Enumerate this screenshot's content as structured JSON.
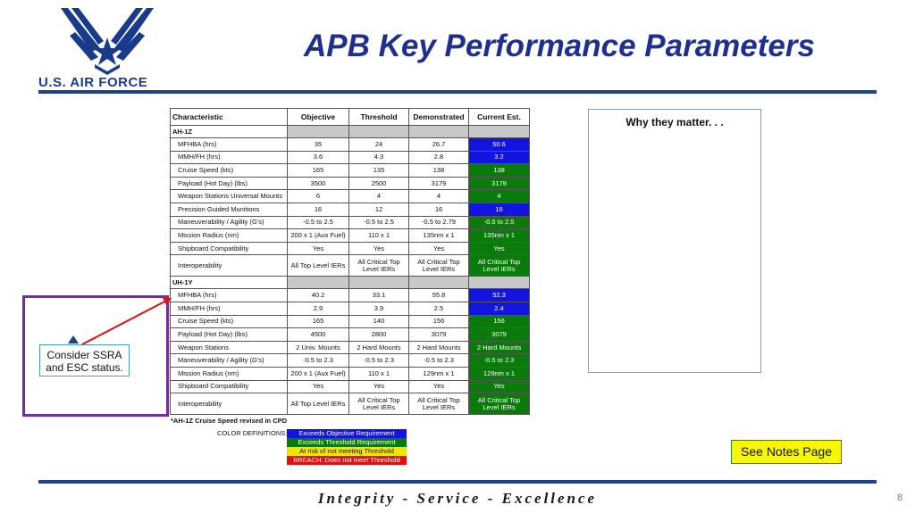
{
  "logo": {
    "text": "U.S. AIR FORCE",
    "icon": "air-force-wings-icon"
  },
  "title": "APB Key Performance Parameters",
  "table": {
    "headers": [
      "Characteristic",
      "Objective",
      "Threshold",
      "Demonstrated",
      "Current Est."
    ],
    "sections": [
      {
        "name": "AH-1Z",
        "rows": [
          [
            "MFHBA (hrs)",
            "35",
            "24",
            "26.7",
            "50.6"
          ],
          [
            "MMH/FH (hrs)",
            "3.6",
            "4.3",
            "2.8",
            "3.2"
          ],
          [
            "Cruise Speed (kts)",
            "165",
            "135",
            "138",
            "138"
          ],
          [
            "Payload (Hot Day) (lbs)",
            "3500",
            "2500",
            "3179",
            "3179"
          ],
          [
            "Weapon Stations Universal Mounts",
            "6",
            "4",
            "4",
            "4"
          ],
          [
            "Precision Guided Munitions",
            "16",
            "12",
            "16",
            "16"
          ],
          [
            "Maneuverability / Agility (G's)",
            "-0.5 to 2.5",
            "-0.5 to 2.5",
            "-0.5 to 2.79",
            "-0.5 to 2.5"
          ],
          [
            "Mission Radius (nm)",
            "200 x 1 (Aux Fuel)",
            "110 x 1",
            "135nm x 1",
            "135nm x 1"
          ],
          [
            "Shipboard Compatibility",
            "Yes",
            "Yes",
            "Yes",
            "Yes"
          ],
          [
            "Interoperability",
            "All Top Level IERs",
            "All Critical Top Level IERs",
            "All Critical Top Level IERs",
            "All Critical Top Level IERs"
          ]
        ],
        "current_status": [
          "blue",
          "blue",
          "green",
          "green",
          "green",
          "blue",
          "green",
          "green",
          "green",
          "green"
        ]
      },
      {
        "name": "UH-1Y",
        "rows": [
          [
            "MFHBA (hrs)",
            "40.2",
            "33.1",
            "55.8",
            "52.3"
          ],
          [
            "MMH/FH (hrs)",
            "2.9",
            "3.9",
            "2.5",
            "2.4"
          ],
          [
            "Cruise Speed (kts)",
            "165",
            "140",
            "156",
            "156"
          ],
          [
            "Payload (Hot Day) (lbs)",
            "4500",
            "2800",
            "3079",
            "3079"
          ],
          [
            "Weapon Stations",
            "2 Univ. Mounts",
            "2 Hard Mounts",
            "2 Hard Mounts",
            "2 Hard Mounts"
          ],
          [
            "Maneuverability / Agility (G's)",
            "-0.5 to 2.3",
            "-0.5 to 2.3",
            "-0.5 to 2.3",
            "-0.5 to 2.3"
          ],
          [
            "Mission Radius (nm)",
            "200 x 1 (Aux Fuel)",
            "110 x 1",
            "129nm x 1",
            "129nm x 1"
          ],
          [
            "Shipboard Compatibility",
            "Yes",
            "Yes",
            "Yes",
            "Yes"
          ],
          [
            "Interoperability",
            "All Top Level IERs",
            "All Critical Top Level IERs",
            "All Critical Top Level IERs",
            "All Critical Top Level IERs"
          ]
        ],
        "current_status": [
          "blue",
          "blue",
          "green",
          "green",
          "green",
          "green",
          "green",
          "green",
          "green"
        ]
      }
    ],
    "footnote": "*AH-1Z Cruise Speed revised in CPD"
  },
  "color_definitions": {
    "label": "COLOR DEFINITIONS:",
    "items": [
      {
        "text": "Exceeds Objective Requirement",
        "color": "#1414e0"
      },
      {
        "text": "Exceeds Threshold Requirement",
        "color": "#0a7a0a"
      },
      {
        "text": "At risk of not meeting Threshold",
        "color": "#f2e600"
      },
      {
        "text": "BREACH:  Does not meet Threshold",
        "color": "#e01010"
      }
    ]
  },
  "why_box": {
    "title": "Why they matter. . ."
  },
  "callout": {
    "text": "Consider SSRA and ESC status."
  },
  "see_notes": "See Notes Page",
  "footer": "Integrity - Service - Excellence",
  "page_number": "8"
}
